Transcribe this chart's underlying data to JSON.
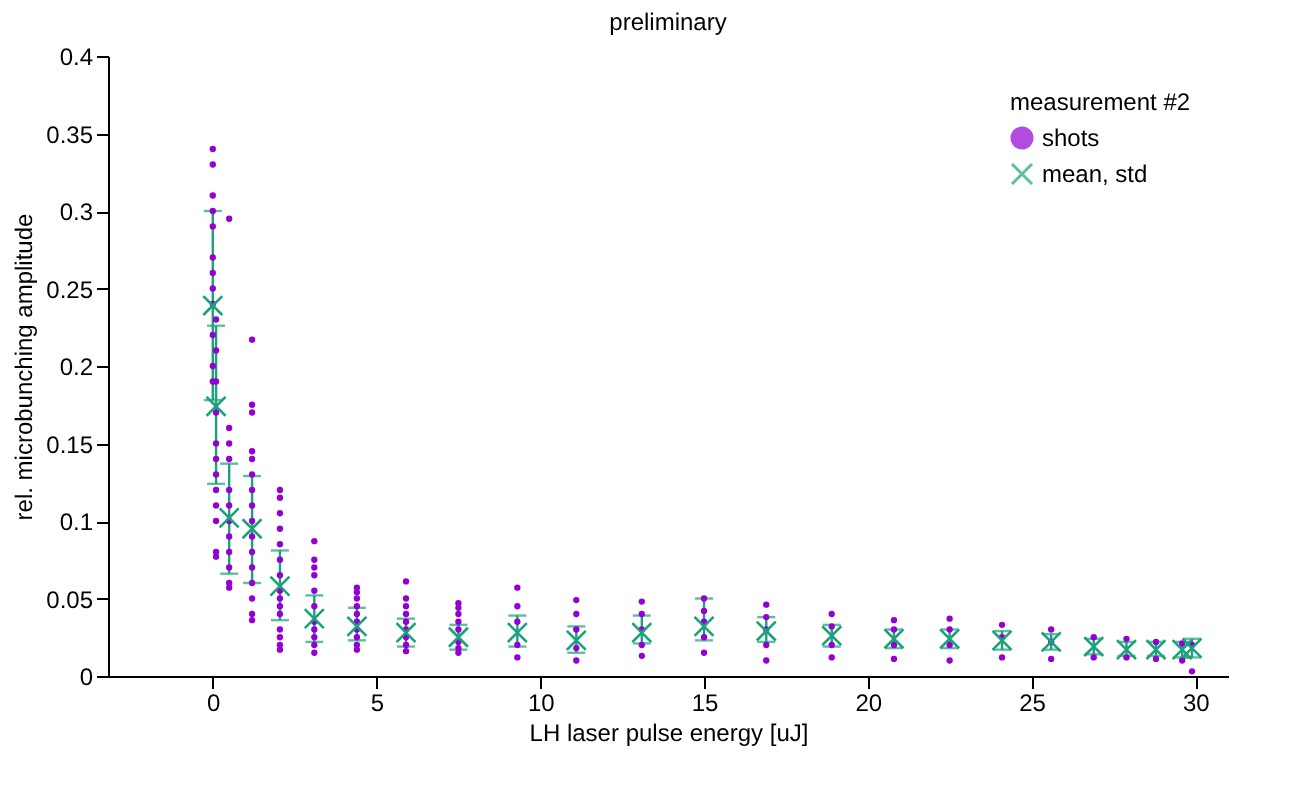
{
  "chart_data": {
    "type": "scatter",
    "title": "preliminary",
    "xlabel": "LH laser pulse energy [uJ]",
    "ylabel": "rel. microbunching amplitude",
    "legend_title": "measurement #2",
    "legend": "top right",
    "grid": false,
    "xlim": [
      -3.2,
      31
    ],
    "ylim": [
      0,
      0.4
    ],
    "xticks": [
      0,
      5,
      10,
      15,
      20,
      25,
      30
    ],
    "yticks": [
      0,
      0.05,
      0.1,
      0.15,
      0.2,
      0.25,
      0.3,
      0.35,
      0.4
    ],
    "series": [
      {
        "name": "shots",
        "color": "#9400d3",
        "marker": "circle",
        "x": [
          0,
          0,
          0,
          0,
          0,
          0,
          0,
          0,
          0,
          0,
          0,
          0,
          0.1,
          0.1,
          0.1,
          0.1,
          0.1,
          0.1,
          0.1,
          0.1,
          0.1,
          0.1,
          0.1,
          0.1,
          0.5,
          0.5,
          0.5,
          0.5,
          0.5,
          0.5,
          0.5,
          0.5,
          0.5,
          0.5,
          0.5,
          0.5,
          1.2,
          1.2,
          1.2,
          1.2,
          1.2,
          1.2,
          1.2,
          1.2,
          1.2,
          1.2,
          1.2,
          1.2,
          1.2,
          1.2,
          1.2,
          1.2,
          2.05,
          2.05,
          2.05,
          2.05,
          2.05,
          2.05,
          2.05,
          2.05,
          2.05,
          2.05,
          2.05,
          2.05,
          2.05,
          2.05,
          2.05,
          3.1,
          3.1,
          3.1,
          3.1,
          3.1,
          3.1,
          3.1,
          3.1,
          3.1,
          3.1,
          3.1,
          4.4,
          4.4,
          4.4,
          4.4,
          4.4,
          4.4,
          4.4,
          4.4,
          4.4,
          4.4,
          5.9,
          5.9,
          5.9,
          5.9,
          5.9,
          5.9,
          5.9,
          5.9,
          5.9,
          7.5,
          7.5,
          7.5,
          7.5,
          7.5,
          7.5,
          7.5,
          7.5,
          9.3,
          9.3,
          9.3,
          9.3,
          9.3,
          11.1,
          11.1,
          11.1,
          11.1,
          11.1,
          13.1,
          13.1,
          13.1,
          13.1,
          13.1,
          15.0,
          15.0,
          15.0,
          15.0,
          15.0,
          16.9,
          16.9,
          16.9,
          16.9,
          16.9,
          18.9,
          18.9,
          18.9,
          18.9,
          20.8,
          20.8,
          20.8,
          20.8,
          22.5,
          22.5,
          22.5,
          22.5,
          24.1,
          24.1,
          24.1,
          25.6,
          25.6,
          25.6,
          26.9,
          26.9,
          27.9,
          27.9,
          28.8,
          28.8,
          29.6,
          29.6,
          29.9,
          29.9
        ],
        "values": [
          0.34,
          0.33,
          0.31,
          0.3,
          0.29,
          0.27,
          0.26,
          0.25,
          0.24,
          0.22,
          0.2,
          0.19,
          0.23,
          0.21,
          0.19,
          0.17,
          0.15,
          0.14,
          0.13,
          0.12,
          0.11,
          0.1,
          0.08,
          0.077,
          0.295,
          0.16,
          0.15,
          0.14,
          0.12,
          0.11,
          0.1,
          0.09,
          0.08,
          0.07,
          0.06,
          0.057,
          0.217,
          0.175,
          0.17,
          0.145,
          0.14,
          0.13,
          0.12,
          0.11,
          0.1,
          0.09,
          0.08,
          0.07,
          0.06,
          0.05,
          0.04,
          0.036,
          0.12,
          0.115,
          0.105,
          0.095,
          0.085,
          0.075,
          0.065,
          0.055,
          0.05,
          0.045,
          0.04,
          0.03,
          0.025,
          0.02,
          0.017,
          0.087,
          0.075,
          0.07,
          0.065,
          0.055,
          0.045,
          0.035,
          0.03,
          0.025,
          0.02,
          0.015,
          0.057,
          0.054,
          0.05,
          0.045,
          0.04,
          0.035,
          0.03,
          0.025,
          0.02,
          0.017,
          0.061,
          0.05,
          0.045,
          0.04,
          0.035,
          0.03,
          0.025,
          0.02,
          0.016,
          0.047,
          0.044,
          0.04,
          0.035,
          0.03,
          0.022,
          0.018,
          0.015,
          0.057,
          0.045,
          0.035,
          0.02,
          0.012,
          0.049,
          0.04,
          0.03,
          0.018,
          0.01,
          0.048,
          0.04,
          0.03,
          0.02,
          0.013,
          0.05,
          0.042,
          0.035,
          0.025,
          0.015,
          0.046,
          0.038,
          0.03,
          0.02,
          0.01,
          0.04,
          0.032,
          0.02,
          0.012,
          0.036,
          0.03,
          0.02,
          0.011,
          0.037,
          0.03,
          0.02,
          0.01,
          0.033,
          0.025,
          0.012,
          0.03,
          0.022,
          0.011,
          0.025,
          0.012,
          0.024,
          0.012,
          0.022,
          0.011,
          0.021,
          0.01,
          0.02,
          0.003
        ]
      },
      {
        "name": "mean, std",
        "color": "#1aa37a",
        "marker": "cross",
        "x": [
          0,
          0.1,
          0.5,
          1.2,
          2.05,
          3.1,
          4.4,
          5.9,
          7.5,
          9.3,
          11.1,
          13.1,
          15.0,
          16.9,
          18.9,
          20.8,
          22.5,
          24.1,
          25.6,
          26.9,
          27.9,
          28.8,
          29.6,
          29.9
        ],
        "values": [
          0.239,
          0.174,
          0.102,
          0.095,
          0.058,
          0.037,
          0.032,
          0.028,
          0.025,
          0.028,
          0.023,
          0.028,
          0.032,
          0.029,
          0.026,
          0.024,
          0.024,
          0.023,
          0.022,
          0.019,
          0.017,
          0.017,
          0.017,
          0.018
        ],
        "errors": [
          [
            0.178,
            0.3
          ],
          [
            0.124,
            0.226
          ],
          [
            0.066,
            0.137
          ],
          [
            0.06,
            0.129
          ],
          [
            0.036,
            0.081
          ],
          [
            0.022,
            0.052
          ],
          [
            0.023,
            0.044
          ],
          [
            0.019,
            0.037
          ],
          [
            0.017,
            0.033
          ],
          [
            0.019,
            0.039
          ],
          [
            0.015,
            0.032
          ],
          [
            0.021,
            0.039
          ],
          [
            0.023,
            0.05
          ],
          [
            0.022,
            0.038
          ],
          [
            0.019,
            0.033
          ],
          [
            0.018,
            0.03
          ],
          [
            0.018,
            0.03
          ],
          [
            0.017,
            0.029
          ],
          [
            0.017,
            0.027
          ],
          [
            0.014,
            0.024
          ],
          [
            0.013,
            0.022
          ],
          [
            0.013,
            0.022
          ],
          [
            0.012,
            0.022
          ],
          [
            0.012,
            0.024
          ]
        ]
      }
    ]
  }
}
